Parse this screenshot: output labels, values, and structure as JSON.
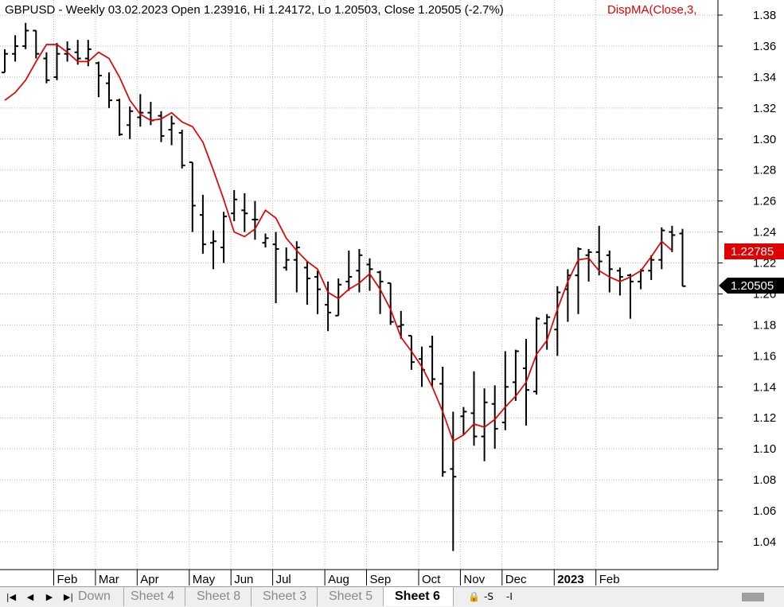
{
  "header": {
    "symbol_info": "GBPUSD - Weekly 03.02.2023 Open 1.23916, Hi 1.24172, Lo 1.20503, Close 1.20505 (-2.7%)",
    "indicator": "DispMA(Close,3,"
  },
  "price_tags": {
    "ma_last": "1.22785",
    "close_last": "1.20505"
  },
  "colors": {
    "bars": "#000000",
    "ma": "#e00000",
    "grid": "#b4b4b4",
    "ma_tag": "#e00000",
    "close_tag": "#000000"
  },
  "sheets": {
    "labels": [
      "Down",
      "Sheet 4",
      "Sheet 8",
      "Sheet 3",
      "Sheet 5",
      "Sheet 6"
    ],
    "active": "Sheet 6",
    "nav_icons": [
      "first-icon",
      "prev-icon",
      "next-icon",
      "last-icon"
    ],
    "tool_labels": [
      "-S",
      "-I"
    ]
  },
  "chart_data": {
    "type": "ohlc",
    "title": "GBPUSD - Weekly",
    "ylim": [
      1.025,
      1.39
    ],
    "y_ticks": [
      1.04,
      1.06,
      1.08,
      1.1,
      1.12,
      1.14,
      1.16,
      1.18,
      1.2,
      1.22,
      1.24,
      1.26,
      1.28,
      1.3,
      1.32,
      1.34,
      1.36,
      1.38
    ],
    "y_tick_labels": [
      "1.04",
      "1.06",
      "1.08",
      "1.10",
      "1.12",
      "1.14",
      "1.16",
      "1.18",
      "1.20",
      "1.22",
      "1.24",
      "1.26",
      "1.28",
      "1.30",
      "1.32",
      "1.34",
      "1.36",
      "1.38"
    ],
    "x_labels": [
      {
        "label": "Feb",
        "bar": 5
      },
      {
        "label": "Mar",
        "bar": 9
      },
      {
        "label": "Apr",
        "bar": 13
      },
      {
        "label": "May",
        "bar": 18
      },
      {
        "label": "Jun",
        "bar": 22
      },
      {
        "label": "Jul",
        "bar": 26
      },
      {
        "label": "Aug",
        "bar": 31
      },
      {
        "label": "Sep",
        "bar": 35
      },
      {
        "label": "Oct",
        "bar": 40
      },
      {
        "label": "Nov",
        "bar": 44
      },
      {
        "label": "Dec",
        "bar": 48
      },
      {
        "label": "2023",
        "bar": 53,
        "bold": true
      },
      {
        "label": "Feb",
        "bar": 57
      }
    ],
    "grid": true,
    "series": [
      {
        "name": "GBPUSD",
        "ohlc": [
          [
            1.343,
            1.358,
            1.343,
            1.355
          ],
          [
            1.355,
            1.367,
            1.35,
            1.36
          ],
          [
            1.36,
            1.375,
            1.358,
            1.37
          ],
          [
            1.37,
            1.37,
            1.352,
            1.355
          ],
          [
            1.352,
            1.356,
            1.336,
            1.338
          ],
          [
            1.34,
            1.362,
            1.338,
            1.355
          ],
          [
            1.355,
            1.363,
            1.35,
            1.358
          ],
          [
            1.356,
            1.364,
            1.348,
            1.352
          ],
          [
            1.352,
            1.364,
            1.347,
            1.358
          ],
          [
            1.349,
            1.35,
            1.327,
            1.341
          ],
          [
            1.336,
            1.343,
            1.32,
            1.325
          ],
          [
            1.325,
            1.326,
            1.302,
            1.303
          ],
          [
            1.309,
            1.321,
            1.3,
            1.318
          ],
          [
            1.314,
            1.329,
            1.308,
            1.317
          ],
          [
            1.317,
            1.324,
            1.309,
            1.312
          ],
          [
            1.315,
            1.318,
            1.298,
            1.302
          ],
          [
            1.306,
            1.315,
            1.296,
            1.31
          ],
          [
            1.304,
            1.306,
            1.281,
            1.283
          ],
          [
            1.285,
            1.285,
            1.24,
            1.257
          ],
          [
            1.251,
            1.264,
            1.226,
            1.232
          ],
          [
            1.233,
            1.241,
            1.216,
            1.234
          ],
          [
            1.23,
            1.253,
            1.22,
            1.25
          ],
          [
            1.252,
            1.267,
            1.247,
            1.261
          ],
          [
            1.254,
            1.265,
            1.24,
            1.252
          ],
          [
            1.248,
            1.26,
            1.235,
            1.248
          ],
          [
            1.233,
            1.239,
            1.23,
            1.236
          ],
          [
            1.232,
            1.24,
            1.194,
            1.229
          ],
          [
            1.217,
            1.23,
            1.215,
            1.222
          ],
          [
            1.222,
            1.234,
            1.201,
            1.23
          ],
          [
            1.217,
            1.221,
            1.193,
            1.21
          ],
          [
            1.211,
            1.215,
            1.187,
            1.203
          ],
          [
            1.193,
            1.208,
            1.176,
            1.188
          ],
          [
            1.186,
            1.21,
            1.186,
            1.206
          ],
          [
            1.208,
            1.228,
            1.202,
            1.211
          ],
          [
            1.215,
            1.229,
            1.201,
            1.225
          ],
          [
            1.219,
            1.223,
            1.202,
            1.216
          ],
          [
            1.214,
            1.215,
            1.187,
            1.208
          ],
          [
            1.207,
            1.207,
            1.18,
            1.182
          ],
          [
            1.179,
            1.189,
            1.171,
            1.18
          ],
          [
            1.173,
            1.173,
            1.151,
            1.156
          ],
          [
            1.158,
            1.166,
            1.14,
            1.151
          ],
          [
            1.166,
            1.173,
            1.14,
            1.145
          ],
          [
            1.142,
            1.153,
            1.082,
            1.085
          ],
          [
            1.087,
            1.124,
            1.034,
            1.082
          ],
          [
            1.121,
            1.127,
            1.109,
            1.124
          ],
          [
            1.123,
            1.15,
            1.102,
            1.108
          ],
          [
            1.108,
            1.139,
            1.092,
            1.13
          ],
          [
            1.129,
            1.141,
            1.1,
            1.113
          ],
          [
            1.117,
            1.163,
            1.112,
            1.14
          ],
          [
            1.143,
            1.164,
            1.131,
            1.163
          ],
          [
            1.152,
            1.171,
            1.115,
            1.138
          ],
          [
            1.137,
            1.185,
            1.135,
            1.184
          ],
          [
            1.181,
            1.187,
            1.164,
            1.185
          ],
          [
            1.177,
            1.205,
            1.16,
            1.201
          ],
          [
            1.203,
            1.216,
            1.182,
            1.212
          ],
          [
            1.212,
            1.23,
            1.187,
            1.229
          ],
          [
            1.225,
            1.229,
            1.208,
            1.227
          ],
          [
            1.227,
            1.244,
            1.212,
            1.221
          ],
          [
            1.225,
            1.228,
            1.201,
            1.216
          ],
          [
            1.215,
            1.217,
            1.199,
            1.211
          ],
          [
            1.212,
            1.213,
            1.184,
            1.208
          ],
          [
            1.208,
            1.216,
            1.203,
            1.215
          ],
          [
            1.215,
            1.225,
            1.209,
            1.222
          ],
          [
            1.222,
            1.243,
            1.216,
            1.241
          ],
          [
            1.24,
            1.244,
            1.227,
            1.238
          ],
          [
            1.239,
            1.242,
            1.205,
            1.205
          ]
        ]
      },
      {
        "name": "DispMA(Close,3,",
        "x_offset": 0,
        "values": [
          1.325,
          1.33,
          1.338,
          1.35,
          1.361,
          1.361,
          1.356,
          1.35,
          1.35,
          1.356,
          1.352,
          1.34,
          1.325,
          1.316,
          1.312,
          1.313,
          1.317,
          1.311,
          1.308,
          1.298,
          1.28,
          1.261,
          1.24,
          1.237,
          1.242,
          1.254,
          1.249,
          1.236,
          1.228,
          1.221,
          1.216,
          1.201,
          1.197,
          1.203,
          1.207,
          1.213,
          1.203,
          1.19,
          1.172,
          1.163,
          1.153,
          1.14,
          1.124,
          1.105,
          1.109,
          1.116,
          1.114,
          1.119,
          1.127,
          1.134,
          1.143,
          1.161,
          1.17,
          1.19,
          1.208,
          1.222,
          1.223,
          1.215,
          1.211,
          1.208,
          1.211,
          1.215,
          1.224,
          1.234,
          1.228
        ]
      }
    ]
  }
}
